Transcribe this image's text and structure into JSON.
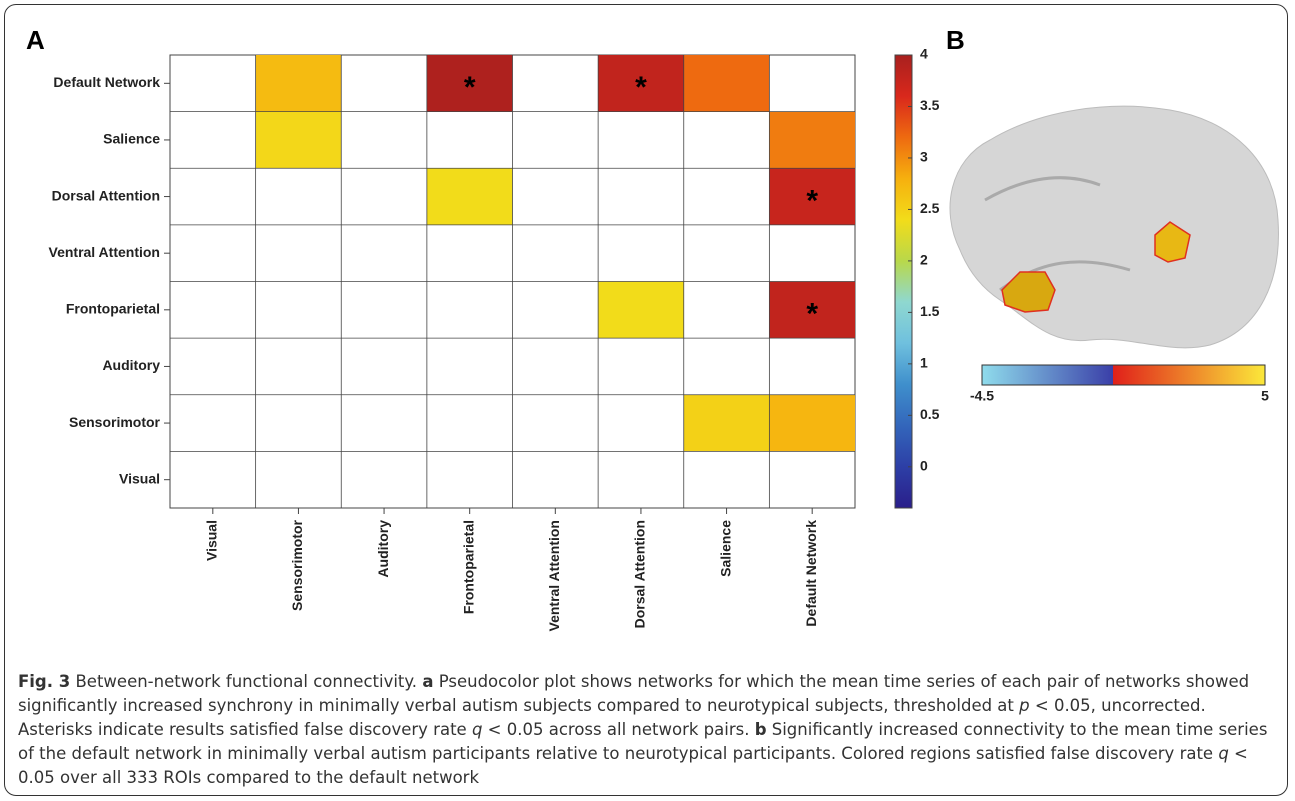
{
  "chart_data": {
    "type": "heatmap",
    "panel_label": "A",
    "x_categories": [
      "Visual",
      "Sensorimotor",
      "Auditory",
      "Frontoparietal",
      "Ventral Attention",
      "Dorsal Attention",
      "Salience",
      "Default Network"
    ],
    "y_categories": [
      "Default Network",
      "Salience",
      "Dorsal Attention",
      "Ventral Attention",
      "Frontoparietal",
      "Auditory",
      "Sensorimotor",
      "Visual"
    ],
    "values": [
      [
        null,
        2.7,
        null,
        3.95,
        null,
        3.8,
        3.2,
        null
      ],
      [
        null,
        2.45,
        null,
        null,
        null,
        null,
        null,
        3.1
      ],
      [
        null,
        null,
        null,
        2.4,
        null,
        null,
        null,
        3.75
      ],
      [
        null,
        null,
        null,
        null,
        null,
        null,
        null,
        null
      ],
      [
        null,
        null,
        null,
        null,
        null,
        2.4,
        null,
        3.8
      ],
      [
        null,
        null,
        null,
        null,
        null,
        null,
        null,
        null
      ],
      [
        null,
        null,
        null,
        null,
        null,
        null,
        2.5,
        2.75
      ],
      [
        null,
        null,
        null,
        null,
        null,
        null,
        null,
        null
      ]
    ],
    "significance": [
      [
        null,
        null,
        null,
        "*",
        null,
        "*",
        null,
        null
      ],
      [
        null,
        null,
        null,
        null,
        null,
        null,
        null,
        null
      ],
      [
        null,
        null,
        null,
        null,
        null,
        null,
        null,
        "*"
      ],
      [
        null,
        null,
        null,
        null,
        null,
        null,
        null,
        null
      ],
      [
        null,
        null,
        null,
        null,
        null,
        null,
        null,
        "*"
      ],
      [
        null,
        null,
        null,
        null,
        null,
        null,
        null,
        null
      ],
      [
        null,
        null,
        null,
        null,
        null,
        null,
        null,
        null
      ],
      [
        null,
        null,
        null,
        null,
        null,
        null,
        null,
        null
      ]
    ],
    "zlim": [
      -0.4,
      4
    ],
    "zticks": [
      0,
      0.5,
      1,
      1.5,
      2,
      2.5,
      3,
      3.5,
      4
    ],
    "colorscale": [
      "#2a1e8a",
      "#2d3fa6",
      "#3366bb",
      "#3f8fcc",
      "#6fc0de",
      "#8fd8d0",
      "#b9d84a",
      "#f2dc1a",
      "#f6b00e",
      "#ee6a10",
      "#d9281c",
      "#a8201e"
    ]
  },
  "panel_b": {
    "panel_label": "B",
    "cticks": [
      -4.5,
      5
    ],
    "colors_negative": [
      "#8fdcec",
      "#3a3fa8"
    ],
    "colors_positive": [
      "#e0201a",
      "#fbe83a"
    ]
  },
  "caption": [
    {
      "text": "Fig. 3",
      "style": "bold"
    },
    {
      "text": " Between-network functional connectivity. ",
      "style": "normal"
    },
    {
      "text": "a",
      "style": "bold"
    },
    {
      "text": " Pseudocolor plot shows networks for which the mean time series of each pair of networks showed significantly increased synchrony in minimally verbal autism subjects compared to neurotypical subjects, thresholded at ",
      "style": "normal"
    },
    {
      "text": "p",
      "style": "italic"
    },
    {
      "text": " < 0.05, uncorrected. Asterisks indicate results satisfied false discovery rate ",
      "style": "normal"
    },
    {
      "text": "q",
      "style": "italic"
    },
    {
      "text": " < 0.05 across all network pairs. ",
      "style": "normal"
    },
    {
      "text": "b",
      "style": "bold"
    },
    {
      "text": " Significantly increased connectivity to the mean time series of the default network in minimally verbal autism participants relative to neurotypical participants. Colored regions satisfied false discovery rate ",
      "style": "normal"
    },
    {
      "text": "q",
      "style": "italic"
    },
    {
      "text": " < 0.05 over all 333 ROIs compared to the default network",
      "style": "normal"
    }
  ]
}
